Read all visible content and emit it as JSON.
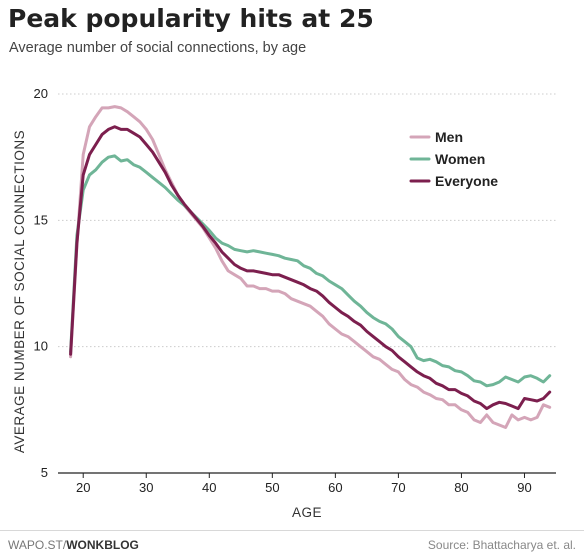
{
  "chart_data": {
    "type": "line",
    "title": "Peak popularity hits at 25",
    "subtitle": "Average number of social connections, by age",
    "xlabel": "AGE",
    "ylabel": "AVERAGE NUMBER OF SOCIAL CONNECTIONS",
    "xlim": [
      16,
      95
    ],
    "ylim": [
      5,
      20
    ],
    "xticks": [
      20,
      30,
      40,
      50,
      60,
      70,
      80,
      90
    ],
    "yticks": [
      5,
      10,
      15,
      20
    ],
    "grid": "horizontal",
    "legend_position": "top-right",
    "series": [
      {
        "name": "Men",
        "color": "#d4a5b8",
        "points": [
          [
            18,
            9.6
          ],
          [
            19,
            14.0
          ],
          [
            20,
            17.6
          ],
          [
            21,
            18.7
          ],
          [
            22,
            19.1
          ],
          [
            23,
            19.45
          ],
          [
            24,
            19.45
          ],
          [
            25,
            19.5
          ],
          [
            26,
            19.45
          ],
          [
            27,
            19.3
          ],
          [
            28,
            19.1
          ],
          [
            29,
            18.9
          ],
          [
            30,
            18.6
          ],
          [
            31,
            18.2
          ],
          [
            32,
            17.6
          ],
          [
            33,
            17.0
          ],
          [
            34,
            16.5
          ],
          [
            35,
            16.0
          ],
          [
            36,
            15.6
          ],
          [
            37,
            15.3
          ],
          [
            38,
            15.0
          ],
          [
            39,
            14.7
          ],
          [
            40,
            14.3
          ],
          [
            41,
            13.9
          ],
          [
            42,
            13.4
          ],
          [
            43,
            13.0
          ],
          [
            44,
            12.85
          ],
          [
            45,
            12.7
          ],
          [
            46,
            12.4
          ],
          [
            47,
            12.4
          ],
          [
            48,
            12.3
          ],
          [
            49,
            12.3
          ],
          [
            50,
            12.2
          ],
          [
            51,
            12.2
          ],
          [
            52,
            12.1
          ],
          [
            53,
            11.9
          ],
          [
            54,
            11.8
          ],
          [
            55,
            11.7
          ],
          [
            56,
            11.6
          ],
          [
            57,
            11.4
          ],
          [
            58,
            11.2
          ],
          [
            59,
            10.9
          ],
          [
            60,
            10.7
          ],
          [
            61,
            10.5
          ],
          [
            62,
            10.4
          ],
          [
            63,
            10.2
          ],
          [
            64,
            10.0
          ],
          [
            65,
            9.8
          ],
          [
            66,
            9.6
          ],
          [
            67,
            9.5
          ],
          [
            68,
            9.3
          ],
          [
            69,
            9.1
          ],
          [
            70,
            9.0
          ],
          [
            71,
            8.7
          ],
          [
            72,
            8.5
          ],
          [
            73,
            8.4
          ],
          [
            74,
            8.2
          ],
          [
            75,
            8.1
          ],
          [
            76,
            7.95
          ],
          [
            77,
            7.9
          ],
          [
            78,
            7.7
          ],
          [
            79,
            7.7
          ],
          [
            80,
            7.5
          ],
          [
            81,
            7.4
          ],
          [
            82,
            7.1
          ],
          [
            83,
            7.0
          ],
          [
            84,
            7.3
          ],
          [
            85,
            7.0
          ],
          [
            86,
            6.9
          ],
          [
            87,
            6.8
          ],
          [
            88,
            7.3
          ],
          [
            89,
            7.1
          ],
          [
            90,
            7.2
          ],
          [
            91,
            7.1
          ],
          [
            92,
            7.2
          ],
          [
            93,
            7.7
          ],
          [
            94,
            7.6
          ]
        ]
      },
      {
        "name": "Women",
        "color": "#6fb597",
        "points": [
          [
            18,
            9.8
          ],
          [
            19,
            14.4
          ],
          [
            20,
            16.2
          ],
          [
            21,
            16.8
          ],
          [
            22,
            17.0
          ],
          [
            23,
            17.3
          ],
          [
            24,
            17.5
          ],
          [
            25,
            17.55
          ],
          [
            26,
            17.35
          ],
          [
            27,
            17.4
          ],
          [
            28,
            17.2
          ],
          [
            29,
            17.1
          ],
          [
            30,
            16.9
          ],
          [
            31,
            16.7
          ],
          [
            32,
            16.5
          ],
          [
            33,
            16.3
          ],
          [
            34,
            16.05
          ],
          [
            35,
            15.8
          ],
          [
            36,
            15.6
          ],
          [
            37,
            15.35
          ],
          [
            38,
            15.1
          ],
          [
            39,
            14.85
          ],
          [
            40,
            14.6
          ],
          [
            41,
            14.3
          ],
          [
            42,
            14.1
          ],
          [
            43,
            14.0
          ],
          [
            44,
            13.85
          ],
          [
            45,
            13.8
          ],
          [
            46,
            13.75
          ],
          [
            47,
            13.8
          ],
          [
            48,
            13.75
          ],
          [
            49,
            13.7
          ],
          [
            50,
            13.65
          ],
          [
            51,
            13.6
          ],
          [
            52,
            13.5
          ],
          [
            53,
            13.45
          ],
          [
            54,
            13.4
          ],
          [
            55,
            13.2
          ],
          [
            56,
            13.1
          ],
          [
            57,
            12.9
          ],
          [
            58,
            12.8
          ],
          [
            59,
            12.6
          ],
          [
            60,
            12.45
          ],
          [
            61,
            12.3
          ],
          [
            62,
            12.05
          ],
          [
            63,
            11.8
          ],
          [
            64,
            11.6
          ],
          [
            65,
            11.35
          ],
          [
            66,
            11.15
          ],
          [
            67,
            11.0
          ],
          [
            68,
            10.9
          ],
          [
            69,
            10.7
          ],
          [
            70,
            10.4
          ],
          [
            71,
            10.2
          ],
          [
            72,
            10.0
          ],
          [
            73,
            9.55
          ],
          [
            74,
            9.45
          ],
          [
            75,
            9.5
          ],
          [
            76,
            9.4
          ],
          [
            77,
            9.25
          ],
          [
            78,
            9.2
          ],
          [
            79,
            9.05
          ],
          [
            80,
            9.0
          ],
          [
            81,
            8.85
          ],
          [
            82,
            8.65
          ],
          [
            83,
            8.6
          ],
          [
            84,
            8.45
          ],
          [
            85,
            8.5
          ],
          [
            86,
            8.6
          ],
          [
            87,
            8.8
          ],
          [
            88,
            8.7
          ],
          [
            89,
            8.6
          ],
          [
            90,
            8.8
          ],
          [
            91,
            8.85
          ],
          [
            92,
            8.75
          ],
          [
            93,
            8.6
          ],
          [
            94,
            8.85
          ]
        ]
      },
      {
        "name": "Everyone",
        "color": "#7c1f4e",
        "points": [
          [
            18,
            9.7
          ],
          [
            19,
            14.1
          ],
          [
            20,
            16.8
          ],
          [
            21,
            17.6
          ],
          [
            22,
            18.0
          ],
          [
            23,
            18.4
          ],
          [
            24,
            18.6
          ],
          [
            25,
            18.7
          ],
          [
            26,
            18.6
          ],
          [
            27,
            18.6
          ],
          [
            28,
            18.45
          ],
          [
            29,
            18.3
          ],
          [
            30,
            18.0
          ],
          [
            31,
            17.7
          ],
          [
            32,
            17.3
          ],
          [
            33,
            16.9
          ],
          [
            34,
            16.4
          ],
          [
            35,
            16.0
          ],
          [
            36,
            15.65
          ],
          [
            37,
            15.35
          ],
          [
            38,
            15.05
          ],
          [
            39,
            14.75
          ],
          [
            40,
            14.4
          ],
          [
            41,
            14.1
          ],
          [
            42,
            13.75
          ],
          [
            43,
            13.5
          ],
          [
            44,
            13.25
          ],
          [
            45,
            13.1
          ],
          [
            46,
            13.0
          ],
          [
            47,
            13.0
          ],
          [
            48,
            12.95
          ],
          [
            49,
            12.9
          ],
          [
            50,
            12.85
          ],
          [
            51,
            12.85
          ],
          [
            52,
            12.75
          ],
          [
            53,
            12.65
          ],
          [
            54,
            12.55
          ],
          [
            55,
            12.45
          ],
          [
            56,
            12.3
          ],
          [
            57,
            12.2
          ],
          [
            58,
            12.0
          ],
          [
            59,
            11.75
          ],
          [
            60,
            11.55
          ],
          [
            61,
            11.35
          ],
          [
            62,
            11.2
          ],
          [
            63,
            11.0
          ],
          [
            64,
            10.85
          ],
          [
            65,
            10.6
          ],
          [
            66,
            10.4
          ],
          [
            67,
            10.2
          ],
          [
            68,
            10.0
          ],
          [
            69,
            9.85
          ],
          [
            70,
            9.6
          ],
          [
            71,
            9.4
          ],
          [
            72,
            9.2
          ],
          [
            73,
            9.0
          ],
          [
            74,
            8.85
          ],
          [
            75,
            8.75
          ],
          [
            76,
            8.55
          ],
          [
            77,
            8.45
          ],
          [
            78,
            8.3
          ],
          [
            79,
            8.3
          ],
          [
            80,
            8.15
          ],
          [
            81,
            8.05
          ],
          [
            82,
            7.85
          ],
          [
            83,
            7.75
          ],
          [
            84,
            7.55
          ],
          [
            85,
            7.7
          ],
          [
            86,
            7.8
          ],
          [
            87,
            7.75
          ],
          [
            88,
            7.65
          ],
          [
            89,
            7.55
          ],
          [
            90,
            7.95
          ],
          [
            91,
            7.9
          ],
          [
            92,
            7.85
          ],
          [
            93,
            7.95
          ],
          [
            94,
            8.2
          ]
        ]
      }
    ]
  },
  "footer": {
    "left_prefix": "WAPO.ST/",
    "left_bold": "WONKBLOG",
    "right": "Source: Bhattacharya et. al."
  }
}
